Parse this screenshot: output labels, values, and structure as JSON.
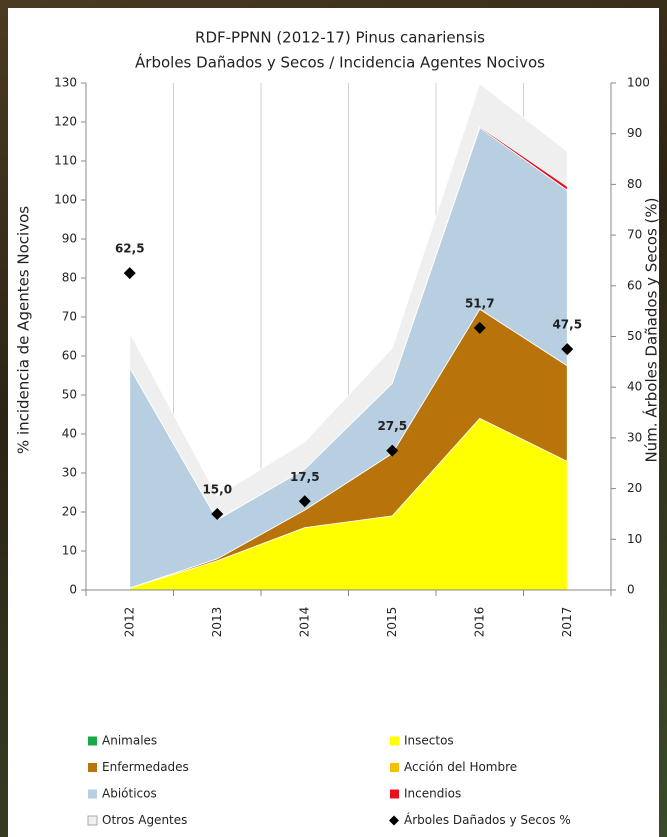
{
  "chart_data": {
    "type": "area",
    "title": "RDF-PPNN (2012-17) Pinus canariensis",
    "subtitle": "Árboles Dañados y Secos / Incidencia Agentes Nocivos",
    "y_label": "% incidencia de Agentes Nocivos",
    "y2_label": "Núm. Árboles Dañados y Secos (%)",
    "categories": [
      "2012",
      "2013",
      "2014",
      "2015",
      "2016",
      "2017"
    ],
    "ylim": [
      0,
      130
    ],
    "yticks": [
      0,
      10,
      20,
      30,
      40,
      50,
      60,
      70,
      80,
      90,
      100,
      110,
      120,
      130
    ],
    "y2lim": [
      0,
      100
    ],
    "y2ticks": [
      0,
      10,
      20,
      30,
      40,
      50,
      60,
      70,
      80,
      90,
      100
    ],
    "stacked": true,
    "grid": "x",
    "legend": "bottom",
    "series": [
      {
        "name": "Animales",
        "type": "area",
        "color": "#1aa84a",
        "values": [
          0,
          0,
          0,
          0,
          0,
          0
        ]
      },
      {
        "name": "Insectos",
        "type": "area",
        "color": "#ffff00",
        "values": [
          0.5,
          7.5,
          16,
          19,
          44,
          33
        ]
      },
      {
        "name": "Enfermedades",
        "type": "area",
        "color": "#b8730a",
        "values": [
          0,
          0.5,
          4.5,
          16,
          28,
          24.5
        ]
      },
      {
        "name": "Acción del Hombre",
        "type": "area",
        "color": "#f2c200",
        "values": [
          0,
          0,
          0,
          0,
          0,
          0
        ]
      },
      {
        "name": "Abióticos",
        "type": "area",
        "color": "#b7cfe0",
        "values": [
          56.5,
          10,
          10.5,
          18,
          46.5,
          45
        ]
      },
      {
        "name": "Incendios",
        "type": "area",
        "color": "#e8101a",
        "values": [
          0,
          0,
          0,
          0,
          0.3,
          1
        ]
      },
      {
        "name": "Otros Agentes",
        "type": "area",
        "color": "#efefef",
        "values": [
          9,
          6,
          7,
          9,
          11,
          9
        ]
      },
      {
        "name": "Árboles Dañados y Secos %",
        "type": "scatter",
        "axis": "y2",
        "color": "#000000",
        "values": [
          62.5,
          15.0,
          17.5,
          27.5,
          51.7,
          47.5
        ],
        "value_labels": [
          "62,5",
          "15,0",
          "17,5",
          "27,5",
          "51,7",
          "47,5"
        ]
      }
    ]
  }
}
